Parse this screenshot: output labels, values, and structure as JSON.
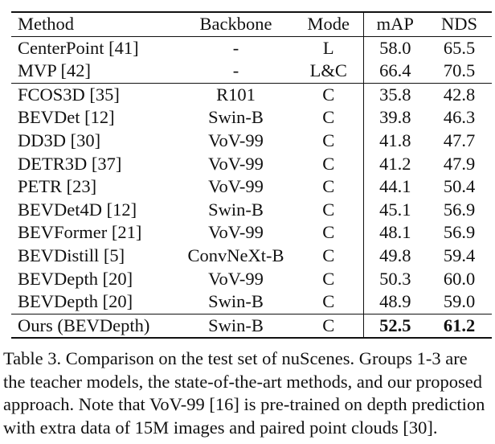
{
  "table": {
    "headers": [
      "Method",
      "Backbone",
      "Mode",
      "mAP",
      "NDS"
    ],
    "groups": [
      [
        [
          "CenterPoint [41]",
          "-",
          "L",
          "58.0",
          "65.5"
        ],
        [
          "MVP [42]",
          "-",
          "L&C",
          "66.4",
          "70.5"
        ]
      ],
      [
        [
          "FCOS3D [35]",
          "R101",
          "C",
          "35.8",
          "42.8"
        ],
        [
          "BEVDet [12]",
          "Swin-B",
          "C",
          "39.8",
          "46.3"
        ],
        [
          "DD3D [30]",
          "VoV-99",
          "C",
          "41.8",
          "47.7"
        ],
        [
          "DETR3D [37]",
          "VoV-99",
          "C",
          "41.2",
          "47.9"
        ],
        [
          "PETR [23]",
          "VoV-99",
          "C",
          "44.1",
          "50.4"
        ],
        [
          "BEVDet4D [12]",
          "Swin-B",
          "C",
          "45.1",
          "56.9"
        ],
        [
          "BEVFormer [21]",
          "VoV-99",
          "C",
          "48.1",
          "56.9"
        ],
        [
          "BEVDistill [5]",
          "ConvNeXt-B",
          "C",
          "49.8",
          "59.4"
        ],
        [
          "BEVDepth [20]",
          "VoV-99",
          "C",
          "50.3",
          "60.0"
        ],
        [
          "BEVDepth [20]",
          "Swin-B",
          "C",
          "48.9",
          "59.0"
        ]
      ],
      [
        [
          "Ours (BEVDepth)",
          "Swin-B",
          "C",
          "52.5",
          "61.2"
        ]
      ]
    ]
  },
  "caption_lines": [
    "Table 3. Comparison on the test set of nuScenes.  Groups 1-3 are",
    "the teacher models, the state-of-the-art methods, and our proposed",
    "approach. Note that VoV-99 [16] is pre-trained on depth prediction",
    "with extra data of 15M images and paired point clouds [30]."
  ]
}
